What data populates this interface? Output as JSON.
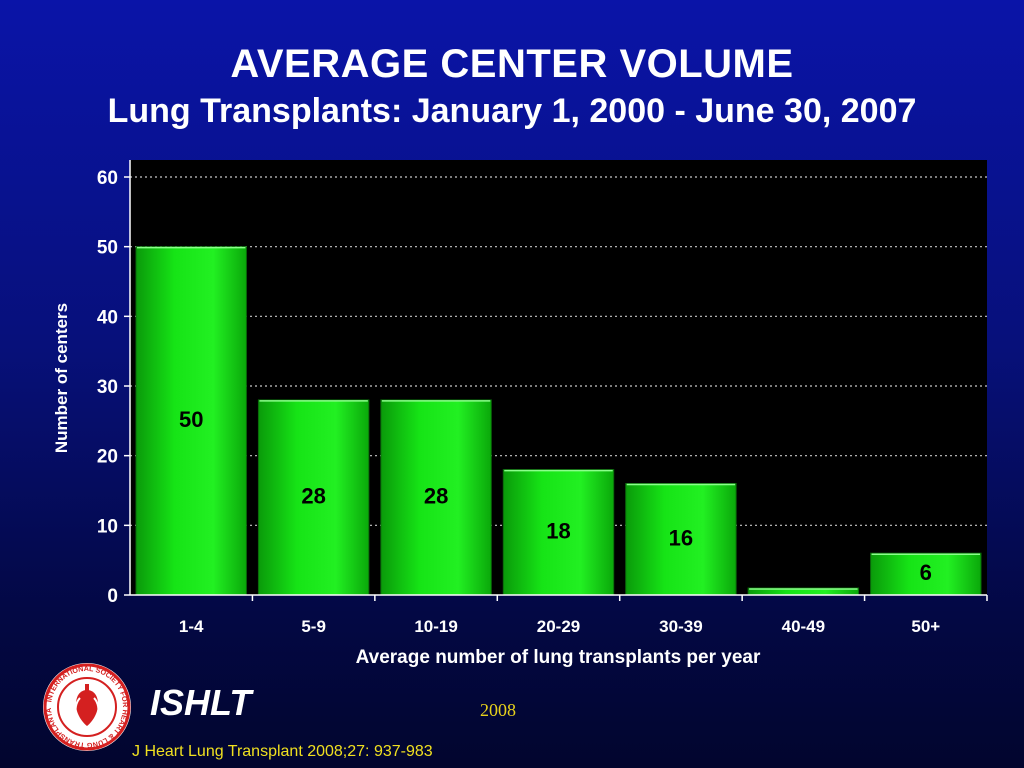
{
  "slide": {
    "title": "AVERAGE CENTER VOLUME",
    "subtitle": "Lung Transplants: January 1, 2000 - June 30, 2007",
    "org": "ISHLT",
    "year": "2008",
    "citation": "J Heart Lung Transplant 2008;27: 937-983",
    "logo_ring_text": "INTERNATIONAL SOCIETY FOR HEART & LUNG TRANSPLANTATION",
    "colors": {
      "background_top": "#0a14a8",
      "background_bottom": "#02052e",
      "plot_area": "#000000",
      "bar": "#11e011",
      "text": "#ffffff",
      "citation": "#f0e020",
      "logo": "#d42020"
    }
  },
  "chart_data": {
    "type": "bar",
    "title": "",
    "xlabel": "Average number of lung transplants per year",
    "ylabel": "Number of centers",
    "categories": [
      "1-4",
      "5-9",
      "10-19",
      "20-29",
      "30-39",
      "40-49",
      "50+"
    ],
    "values": [
      50,
      28,
      28,
      18,
      16,
      1,
      6
    ],
    "data_labels": [
      "50",
      "28",
      "28",
      "18",
      "16",
      "",
      "6"
    ],
    "ylim": [
      0,
      60
    ],
    "yticks": [
      "0",
      "10",
      "20",
      "30",
      "40",
      "50",
      "60"
    ],
    "grid": "horizontal dotted",
    "legend": "none"
  }
}
